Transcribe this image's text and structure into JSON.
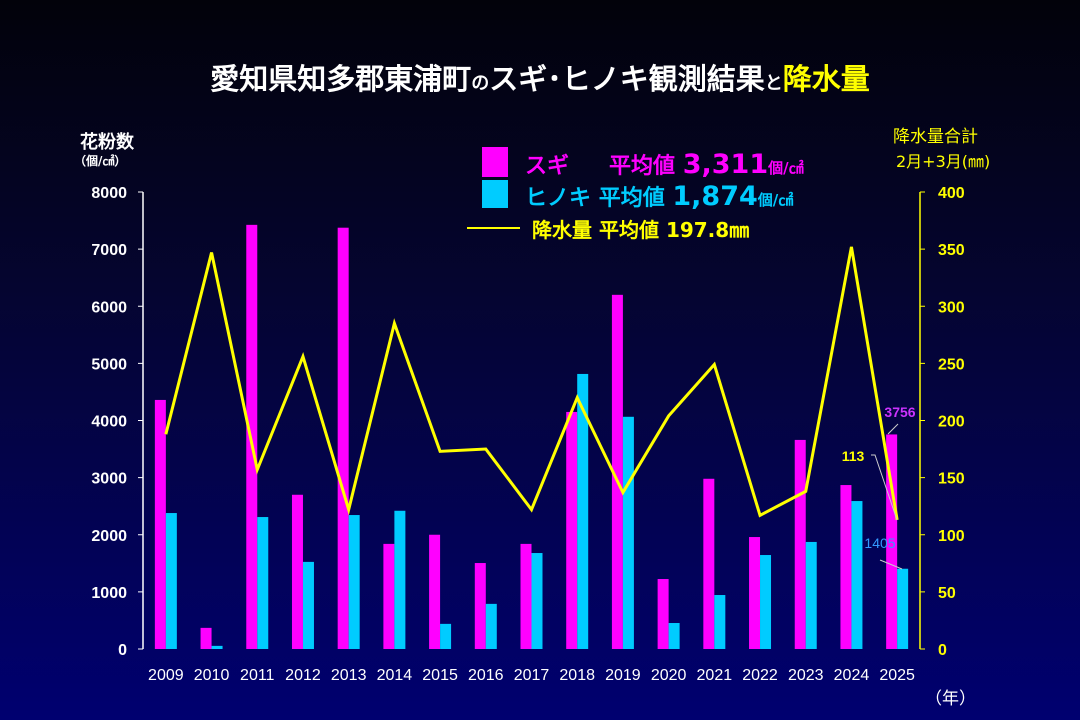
{
  "title": {
    "main": "愛知県知多郡東浦町",
    "particle": "の",
    "mid": "スギ･ヒノキ観測結果",
    "particle2": "と",
    "highlight": "降水量"
  },
  "left_axis": {
    "label": "花粉数",
    "unit": "（個/㎠）"
  },
  "right_axis": {
    "label": "降水量合計",
    "unit": "2月+3月(㎜)"
  },
  "x_unit": "（年）",
  "legend": {
    "sugi": {
      "name": "スギ",
      "avg_label": "平均値",
      "avg": "3,311",
      "unit": "個/㎠"
    },
    "hinoki": {
      "name": "ヒノキ",
      "avg_label": "平均値",
      "avg": "1,874",
      "unit": "個/㎠"
    },
    "rain": {
      "name": "降水量",
      "avg_label": "平均値",
      "avg": "197.8㎜"
    }
  },
  "colors": {
    "sugi": "#ff00ff",
    "hinoki": "#00ccff",
    "rain": "#ffff00"
  },
  "chart_data": {
    "type": "bar",
    "categories": [
      "2009",
      "2010",
      "2011",
      "2012",
      "2013",
      "2014",
      "2015",
      "2016",
      "2017",
      "2018",
      "2019",
      "2020",
      "2021",
      "2022",
      "2023",
      "2024",
      "2025"
    ],
    "series": [
      {
        "name": "スギ",
        "axis": "left",
        "type": "bar",
        "values": [
          4360,
          370,
          7425,
          2700,
          7375,
          1840,
          2000,
          1505,
          1840,
          4150,
          6200,
          1225,
          2980,
          1960,
          3660,
          2870,
          3756
        ]
      },
      {
        "name": "ヒノキ",
        "axis": "left",
        "type": "bar",
        "values": [
          2380,
          55,
          2310,
          1525,
          2345,
          2420,
          440,
          790,
          1680,
          4815,
          4065,
          455,
          945,
          1645,
          1874,
          2590,
          1405
        ]
      },
      {
        "name": "降水量",
        "axis": "right",
        "type": "line",
        "values": [
          188,
          347,
          157,
          256,
          122,
          285,
          173,
          175,
          122,
          220,
          137,
          204,
          249,
          117,
          138,
          352,
          113
        ]
      }
    ],
    "annotations": [
      "3756",
      "113",
      "1405"
    ],
    "ylim_left": [
      0,
      8000
    ],
    "yticks_left": [
      "0",
      "1000",
      "2000",
      "3000",
      "4000",
      "5000",
      "6000",
      "7000",
      "8000"
    ],
    "ylim_right": [
      0,
      400
    ],
    "yticks_right": [
      "0",
      "50",
      "100",
      "150",
      "200",
      "250",
      "300",
      "350",
      "400"
    ]
  }
}
